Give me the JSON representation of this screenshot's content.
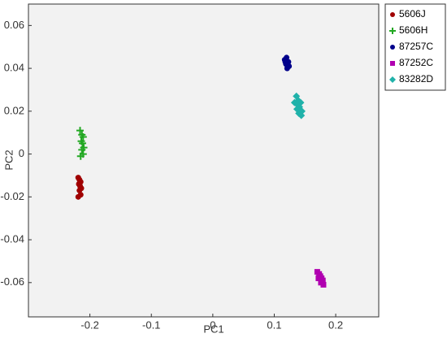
{
  "chart_data": {
    "type": "scatter",
    "x_label": "PC1",
    "y_label": "PC2",
    "xlim": [
      -0.3,
      0.27
    ],
    "ylim": [
      -0.076,
      0.07
    ],
    "xticks": [
      -0.2,
      -0.1,
      0,
      0.1,
      0.2
    ],
    "yticks": [
      -0.06,
      -0.04,
      -0.02,
      0,
      0.02,
      0.04,
      0.06
    ],
    "grid": false,
    "legend": "outside-top-right",
    "series": [
      {
        "name": "5606J",
        "color": "#a00000",
        "marker": "circle",
        "x": [
          -0.219,
          -0.217,
          -0.215,
          -0.218,
          -0.216,
          -0.214,
          -0.217,
          -0.215,
          -0.219
        ],
        "y": [
          -0.011,
          -0.012,
          -0.013,
          -0.014,
          -0.015,
          -0.016,
          -0.017,
          -0.019,
          -0.02
        ]
      },
      {
        "name": "5606H",
        "color": "#22a822",
        "marker": "plus",
        "x": [
          -0.216,
          -0.213,
          -0.211,
          -0.214,
          -0.212,
          -0.21,
          -0.213,
          -0.211,
          -0.215
        ],
        "y": [
          0.011,
          0.009,
          0.008,
          0.006,
          0.005,
          0.003,
          0.002,
          0.0,
          -0.001
        ]
      },
      {
        "name": "87257C",
        "color": "#00008b",
        "marker": "circle",
        "x": [
          0.117,
          0.12,
          0.123,
          0.119,
          0.122,
          0.121,
          0.118,
          0.124
        ],
        "y": [
          0.044,
          0.045,
          0.043,
          0.042,
          0.042,
          0.04,
          0.043,
          0.041
        ]
      },
      {
        "name": "87252C",
        "color": "#b000b0",
        "marker": "square",
        "x": [
          0.17,
          0.173,
          0.175,
          0.172,
          0.177,
          0.176,
          0.179,
          0.18
        ],
        "y": [
          -0.055,
          -0.056,
          -0.057,
          -0.058,
          -0.058,
          -0.06,
          -0.059,
          -0.061
        ]
      },
      {
        "name": "83282D",
        "color": "#20b2aa",
        "marker": "diamond",
        "x": [
          0.133,
          0.136,
          0.139,
          0.141,
          0.137,
          0.143,
          0.14,
          0.145,
          0.138,
          0.144
        ],
        "y": [
          0.024,
          0.027,
          0.025,
          0.022,
          0.021,
          0.024,
          0.019,
          0.02,
          0.023,
          0.018
        ]
      }
    ]
  }
}
